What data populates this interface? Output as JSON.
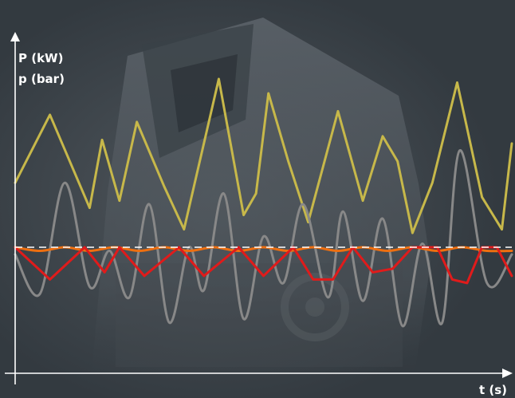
{
  "chart_data": {
    "type": "line",
    "y_axis_label_lines": [
      "P (kW)",
      "p (bar)"
    ],
    "xlabel": "t (s)",
    "grid": false,
    "legend": "none",
    "xlim": [
      0,
      100
    ],
    "ylim": [
      -30,
      85
    ],
    "baseline": 0,
    "series": [
      {
        "color": "#c7b84a",
        "style": "sharp",
        "points": [
          [
            0,
            18
          ],
          [
            7,
            37
          ],
          [
            15,
            11
          ],
          [
            17.5,
            30
          ],
          [
            21,
            13
          ],
          [
            24.5,
            35
          ],
          [
            30,
            17
          ],
          [
            34,
            5
          ],
          [
            41,
            47
          ],
          [
            46,
            9
          ],
          [
            48.5,
            15
          ],
          [
            51,
            43
          ],
          [
            55,
            24
          ],
          [
            59,
            7
          ],
          [
            65,
            38
          ],
          [
            70,
            13
          ],
          [
            74,
            31
          ],
          [
            77,
            24
          ],
          [
            80,
            4
          ],
          [
            84,
            18
          ],
          [
            89,
            46
          ],
          [
            94,
            14
          ],
          [
            98,
            5
          ],
          [
            100,
            29
          ]
        ]
      },
      {
        "color": "#888888",
        "style": "smooth",
        "points": [
          [
            0,
            -2
          ],
          [
            5,
            -13
          ],
          [
            10,
            18
          ],
          [
            15,
            -11
          ],
          [
            19,
            -1
          ],
          [
            23,
            -14
          ],
          [
            27,
            12
          ],
          [
            31,
            -21
          ],
          [
            35,
            0
          ],
          [
            38,
            -12
          ],
          [
            42,
            15
          ],
          [
            46,
            -20
          ],
          [
            50,
            3
          ],
          [
            54,
            -10
          ],
          [
            58,
            12
          ],
          [
            63,
            -14
          ],
          [
            66,
            10
          ],
          [
            70,
            -15
          ],
          [
            74,
            8
          ],
          [
            78,
            -22
          ],
          [
            82,
            1
          ],
          [
            86,
            -21
          ],
          [
            89.5,
            27
          ],
          [
            95,
            -10
          ],
          [
            100,
            -2
          ]
        ]
      },
      {
        "color": "#ee6f10",
        "style": "smooth",
        "points": [
          [
            0,
            0
          ],
          [
            5,
            -1
          ],
          [
            10,
            0
          ],
          [
            15,
            -1
          ],
          [
            20,
            0
          ],
          [
            25,
            -1
          ],
          [
            30,
            0
          ],
          [
            35,
            -1
          ],
          [
            40,
            0
          ],
          [
            45,
            -1
          ],
          [
            50,
            0
          ],
          [
            55,
            -1
          ],
          [
            60,
            0
          ],
          [
            65,
            -1
          ],
          [
            70,
            0
          ],
          [
            75,
            -1
          ],
          [
            80,
            0
          ],
          [
            85,
            -1
          ],
          [
            90,
            0
          ],
          [
            95,
            -1
          ],
          [
            100,
            -1
          ]
        ]
      },
      {
        "color": "#e01b1b",
        "style": "sharp",
        "points": [
          [
            0,
            0
          ],
          [
            7,
            -9
          ],
          [
            14,
            0
          ],
          [
            18,
            -7
          ],
          [
            21,
            0
          ],
          [
            26,
            -8
          ],
          [
            33,
            0
          ],
          [
            38,
            -8
          ],
          [
            45,
            0
          ],
          [
            50,
            -8
          ],
          [
            56,
            0
          ],
          [
            60,
            -9
          ],
          [
            64,
            -9
          ],
          [
            68,
            0
          ],
          [
            72,
            -7
          ],
          [
            76,
            -6
          ],
          [
            80,
            0
          ],
          [
            85,
            0
          ],
          [
            88,
            -9
          ],
          [
            91,
            -10
          ],
          [
            94,
            0
          ],
          [
            97,
            0
          ],
          [
            100,
            -8
          ]
        ]
      }
    ]
  }
}
